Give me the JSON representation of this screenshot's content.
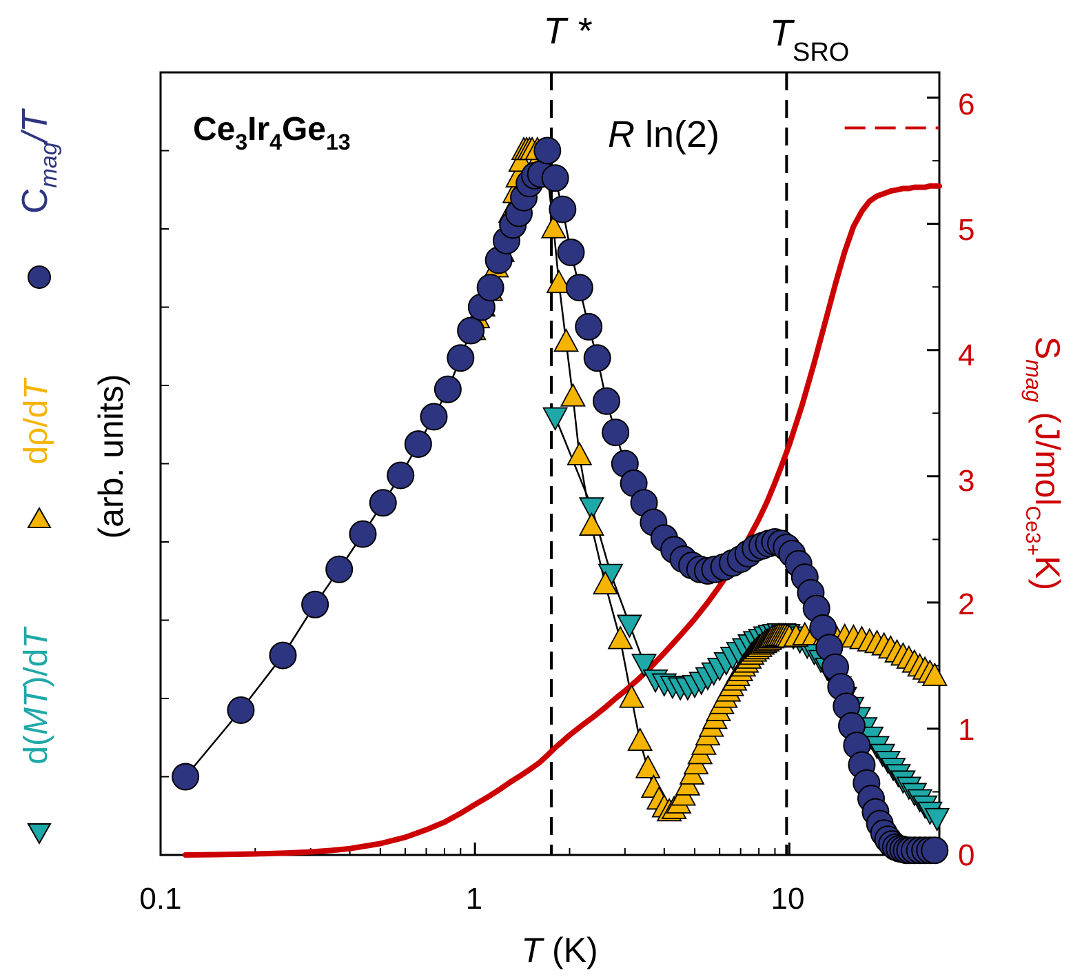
{
  "chart_data": {
    "type": "scatter",
    "title": "Ce3Ir4Ge13",
    "title_parts": {
      "el1": "Ce",
      "n1": "3",
      "el2": "Ir",
      "n2": "4",
      "el3": "Ge",
      "n3": "13"
    },
    "xlabel": {
      "symbol": "T",
      "unit": "(K)"
    },
    "x_scale": "log",
    "xlim": [
      0.1,
      30
    ],
    "x_ticks": [
      0.1,
      1,
      10
    ],
    "x_tick_labels": [
      "0.1",
      "1",
      "10"
    ],
    "x_minor_ticks": [
      0.2,
      0.3,
      0.4,
      0.5,
      0.6,
      0.7,
      0.8,
      0.9,
      2,
      3,
      4,
      5,
      6,
      7,
      8,
      9,
      20,
      30
    ],
    "left_axis": {
      "label": "(arb. units)",
      "ylim": [
        0,
        1
      ],
      "minor_ticks": [
        0.1,
        0.2,
        0.3,
        0.4,
        0.5,
        0.6,
        0.7,
        0.8,
        0.9
      ]
    },
    "left_legend": [
      {
        "series": "dMT_dT",
        "marker": "down-triangle",
        "color": "#1fa8a8",
        "text_pre": "d(",
        "text_it": "MT",
        "text_mid": ")/d",
        "text_it2": "T"
      },
      {
        "series": "drho_dT",
        "marker": "up-triangle",
        "color": "#f5b400",
        "text_pre": "dρ/d",
        "text_it": "T",
        "text_mid": "",
        "text_it2": ""
      },
      {
        "series": "Cmag_T",
        "marker": "circle",
        "color": "#2e3580",
        "text_pre": "C",
        "text_sub": "mag",
        "text_it": "/T"
      }
    ],
    "right_axis": {
      "label_symbol": "S",
      "label_sub": "mag",
      "label_unit_pre": "(J/mol",
      "label_unit_sub": "Ce3+",
      "label_unit_post": "K)",
      "ylim": [
        0,
        6.2
      ],
      "ticks": [
        0,
        1,
        2,
        3,
        4,
        5,
        6
      ],
      "tick_labels": [
        "0",
        "1",
        "2",
        "3",
        "4",
        "5",
        "6"
      ],
      "minor_ticks": [
        0.5,
        1.5,
        2.5,
        3.5,
        4.5,
        5.5
      ],
      "color": "#cc0000"
    },
    "annotations": {
      "t_star": {
        "label": "T *",
        "x": 1.75
      },
      "t_sro": {
        "label_main": "T",
        "label_sub": "SRO",
        "x": 9.8
      },
      "rln2": {
        "label_it": "R",
        "label_rest": " ln(2)",
        "value": 5.76,
        "x_start": 15,
        "x_end": 30
      }
    },
    "series": [
      {
        "name": "Cmag_T",
        "axis": "left",
        "color": "#2e3580",
        "marker": "circle",
        "x": [
          0.12,
          0.18,
          0.245,
          0.31,
          0.37,
          0.44,
          0.51,
          0.58,
          0.66,
          0.74,
          0.82,
          0.9,
          0.97,
          1.05,
          1.12,
          1.19,
          1.26,
          1.32,
          1.38,
          1.43,
          1.49,
          1.55,
          1.62,
          1.7,
          1.8,
          1.9,
          2.02,
          2.15,
          2.3,
          2.45,
          2.62,
          2.8,
          3.0,
          3.2,
          3.45,
          3.7,
          4.0,
          4.3,
          4.6,
          4.9,
          5.2,
          5.5,
          5.8,
          6.2,
          6.6,
          7.0,
          7.4,
          7.8,
          8.2,
          8.6,
          9.0,
          9.4,
          9.8,
          10.2,
          10.7,
          11.2,
          11.7,
          12.2,
          12.8,
          13.4,
          14.0,
          14.6,
          15.2,
          15.8,
          16.4,
          17.0,
          17.6,
          18.2,
          18.8,
          19.4,
          20.0,
          20.6,
          21.2,
          21.8,
          22.4,
          23.0,
          23.6,
          24.2,
          25,
          26,
          27,
          28,
          29
        ],
        "y": [
          0.1,
          0.185,
          0.255,
          0.32,
          0.365,
          0.41,
          0.45,
          0.485,
          0.525,
          0.56,
          0.595,
          0.635,
          0.67,
          0.7,
          0.725,
          0.76,
          0.785,
          0.805,
          0.82,
          0.84,
          0.858,
          0.868,
          0.87,
          0.9,
          0.865,
          0.825,
          0.77,
          0.725,
          0.675,
          0.635,
          0.58,
          0.54,
          0.5,
          0.475,
          0.45,
          0.425,
          0.405,
          0.39,
          0.378,
          0.37,
          0.365,
          0.363,
          0.365,
          0.368,
          0.373,
          0.378,
          0.385,
          0.392,
          0.395,
          0.398,
          0.4,
          0.398,
          0.393,
          0.385,
          0.372,
          0.355,
          0.335,
          0.315,
          0.29,
          0.265,
          0.24,
          0.215,
          0.19,
          0.165,
          0.14,
          0.115,
          0.092,
          0.072,
          0.055,
          0.04,
          0.028,
          0.02,
          0.014,
          0.01,
          0.008,
          0.007,
          0.006,
          0.006,
          0.006,
          0.006,
          0.006,
          0.006,
          0.006
        ]
      },
      {
        "name": "drho_dT",
        "axis": "left",
        "color": "#f5b400",
        "marker": "up-triangle",
        "x": [
          0.99,
          1.02,
          1.06,
          1.12,
          1.17,
          1.22,
          1.26,
          1.3,
          1.34,
          1.37,
          1.4,
          1.43,
          1.46,
          1.49,
          1.52,
          1.55,
          1.58,
          1.63,
          1.7,
          1.78,
          1.85,
          1.95,
          2.05,
          2.15,
          2.35,
          2.6,
          2.9,
          3.15,
          3.35,
          3.55,
          3.7,
          3.85,
          4.0,
          4.15,
          4.3,
          4.45,
          4.6,
          4.75,
          4.9,
          5.05,
          5.2,
          5.35,
          5.5,
          5.65,
          5.8,
          5.95,
          6.1,
          6.25,
          6.4,
          6.55,
          6.7,
          6.85,
          7.0,
          7.15,
          7.3,
          7.45,
          7.6,
          7.75,
          7.9,
          8.05,
          8.2,
          8.35,
          8.5,
          8.65,
          8.8,
          8.95,
          9.1,
          9.25,
          9.4,
          9.55,
          9.7,
          9.85,
          10.0,
          10.5,
          11.2,
          12,
          13,
          14,
          15,
          16,
          17,
          18,
          19,
          20,
          21,
          22,
          23,
          24,
          25,
          26,
          27,
          28,
          29
        ],
        "y": [
          0.67,
          0.685,
          0.7,
          0.72,
          0.75,
          0.77,
          0.795,
          0.82,
          0.845,
          0.865,
          0.885,
          0.9,
          0.9,
          0.9,
          0.9,
          0.88,
          0.9,
          0.88,
          0.87,
          0.8,
          0.73,
          0.655,
          0.585,
          0.51,
          0.42,
          0.345,
          0.275,
          0.2,
          0.145,
          0.11,
          0.085,
          0.07,
          0.06,
          0.055,
          0.058,
          0.065,
          0.075,
          0.088,
          0.102,
          0.115,
          0.128,
          0.14,
          0.152,
          0.163,
          0.173,
          0.183,
          0.192,
          0.2,
          0.208,
          0.215,
          0.222,
          0.228,
          0.234,
          0.24,
          0.245,
          0.25,
          0.255,
          0.259,
          0.262,
          0.265,
          0.268,
          0.27,
          0.272,
          0.274,
          0.276,
          0.277,
          0.278,
          0.279,
          0.279,
          0.279,
          0.279,
          0.278,
          0.277,
          0.278,
          0.28,
          0.28,
          0.28,
          0.279,
          0.278,
          0.277,
          0.275,
          0.272,
          0.27,
          0.267,
          0.263,
          0.258,
          0.254,
          0.25,
          0.245,
          0.24,
          0.236,
          0.232,
          0.228
        ]
      },
      {
        "name": "dMT_dT",
        "axis": "left",
        "color": "#1fa8a8",
        "marker": "down-triangle",
        "x": [
          1.8,
          2.35,
          2.7,
          3.1,
          3.45,
          3.75,
          4.0,
          4.25,
          4.5,
          4.75,
          5.0,
          5.25,
          5.5,
          5.75,
          6.0,
          6.3,
          6.6,
          6.9,
          7.2,
          7.5,
          7.8,
          8.1,
          8.4,
          8.7,
          9.0,
          9.3,
          9.6,
          9.9,
          10.3,
          10.8,
          11.4,
          12.0,
          12.6,
          13.2,
          13.8,
          14.4,
          15.0,
          15.8,
          16.6,
          17.4,
          18.2,
          19.0,
          19.8,
          20.6,
          21.4,
          22.2,
          23,
          24,
          25,
          26,
          27,
          28,
          29.5
        ],
        "y": [
          0.56,
          0.445,
          0.36,
          0.295,
          0.245,
          0.225,
          0.22,
          0.217,
          0.215,
          0.215,
          0.218,
          0.222,
          0.228,
          0.234,
          0.24,
          0.247,
          0.254,
          0.26,
          0.265,
          0.27,
          0.274,
          0.277,
          0.28,
          0.282,
          0.283,
          0.284,
          0.284,
          0.283,
          0.28,
          0.275,
          0.268,
          0.26,
          0.25,
          0.24,
          0.228,
          0.216,
          0.203,
          0.19,
          0.177,
          0.164,
          0.152,
          0.14,
          0.13,
          0.121,
          0.112,
          0.104,
          0.096,
          0.088,
          0.08,
          0.072,
          0.064,
          0.056,
          0.048
        ]
      },
      {
        "name": "Smag",
        "axis": "right",
        "color": "#cc0000",
        "marker": "line",
        "x": [
          0.12,
          0.15,
          0.2,
          0.25,
          0.3,
          0.35,
          0.4,
          0.5,
          0.6,
          0.7,
          0.8,
          0.9,
          1.0,
          1.1,
          1.2,
          1.3,
          1.4,
          1.5,
          1.6,
          1.7,
          1.8,
          1.9,
          2.0,
          2.2,
          2.4,
          2.6,
          2.8,
          3.0,
          3.3,
          3.6,
          4.0,
          4.5,
          5.0,
          5.5,
          6.0,
          6.5,
          7.0,
          7.5,
          8.0,
          8.5,
          9.0,
          9.5,
          10,
          11,
          12,
          13,
          14,
          15,
          16,
          17,
          18,
          19,
          20,
          21,
          22,
          23,
          24,
          25,
          26,
          27,
          28,
          29,
          30
        ],
        "y": [
          0,
          0.003,
          0.008,
          0.015,
          0.024,
          0.036,
          0.05,
          0.09,
          0.14,
          0.2,
          0.26,
          0.33,
          0.4,
          0.46,
          0.52,
          0.58,
          0.63,
          0.68,
          0.73,
          0.79,
          0.85,
          0.9,
          0.95,
          1.03,
          1.1,
          1.17,
          1.24,
          1.3,
          1.39,
          1.48,
          1.6,
          1.74,
          1.87,
          2.0,
          2.13,
          2.26,
          2.39,
          2.53,
          2.66,
          2.8,
          2.95,
          3.1,
          3.25,
          3.57,
          3.9,
          4.22,
          4.52,
          4.78,
          4.98,
          5.1,
          5.18,
          5.22,
          5.24,
          5.26,
          5.27,
          5.28,
          5.28,
          5.29,
          5.29,
          5.29,
          5.3,
          5.3,
          5.3
        ]
      }
    ]
  }
}
